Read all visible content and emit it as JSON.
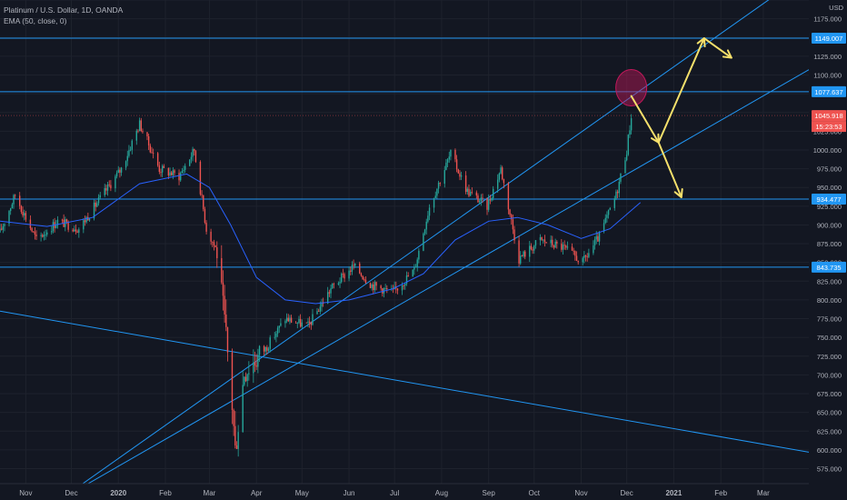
{
  "header": {
    "symbol_line": "Platinum / U.S. Dollar, 1D, OANDA",
    "indicator_line": "EMA (50, close, 0)",
    "currency": "USD"
  },
  "colors": {
    "background": "#131722",
    "grid": "#1e222d",
    "up": "#26a69a",
    "down": "#ef5350",
    "line": "#2196f3",
    "ema": "#2962ff",
    "arrow": "#f5e06b",
    "circle": "#c2185b",
    "axis_text": "#b2b5be"
  },
  "chart_data": {
    "type": "candlestick",
    "y_axis": {
      "min": 555,
      "max": 1200,
      "ticks": [
        575,
        600,
        625,
        650,
        675,
        700,
        725,
        750,
        775,
        800,
        825,
        850,
        875,
        900,
        925,
        950,
        975,
        1000,
        1025,
        1050,
        1075,
        1100,
        1125,
        1150,
        1175,
        1200
      ],
      "tick_labels": [
        "575.000",
        "600.000",
        "625.000",
        "650.000",
        "675.000",
        "700.000",
        "725.000",
        "750.000",
        "775.000",
        "800.000",
        "825.000",
        "850.000",
        "875.000",
        "900.000",
        "925.000",
        "950.000",
        "975.000",
        "1000.000",
        "1025.000",
        "1050.000",
        "1075.000",
        "1100.000",
        "1125.000",
        "1150.000",
        "1175.000",
        "1200.000"
      ]
    },
    "x_axis": {
      "start": "2019-10-15",
      "end": "2021-03-31",
      "labels": [
        {
          "date": "2019-11-01",
          "text": "Nov",
          "bold": false
        },
        {
          "date": "2019-12-01",
          "text": "Dec",
          "bold": false
        },
        {
          "date": "2020-01-01",
          "text": "2020",
          "bold": true
        },
        {
          "date": "2020-02-01",
          "text": "Feb",
          "bold": false
        },
        {
          "date": "2020-03-01",
          "text": "Mar",
          "bold": false
        },
        {
          "date": "2020-04-01",
          "text": "Apr",
          "bold": false
        },
        {
          "date": "2020-05-01",
          "text": "May",
          "bold": false
        },
        {
          "date": "2020-06-01",
          "text": "Jun",
          "bold": false
        },
        {
          "date": "2020-07-01",
          "text": "Jul",
          "bold": false
        },
        {
          "date": "2020-08-01",
          "text": "Aug",
          "bold": false
        },
        {
          "date": "2020-09-01",
          "text": "Sep",
          "bold": false
        },
        {
          "date": "2020-10-01",
          "text": "Oct",
          "bold": false
        },
        {
          "date": "2020-11-01",
          "text": "Nov",
          "bold": false
        },
        {
          "date": "2020-12-01",
          "text": "Dec",
          "bold": false
        },
        {
          "date": "2021-01-01",
          "text": "2021",
          "bold": true
        },
        {
          "date": "2021-02-01",
          "text": "Feb",
          "bold": false
        },
        {
          "date": "2021-03-01",
          "text": "Mar",
          "bold": false
        }
      ]
    },
    "price_path": [
      {
        "date": "2019-10-15",
        "price": 890
      },
      {
        "date": "2019-10-25",
        "price": 940
      },
      {
        "date": "2019-11-08",
        "price": 880
      },
      {
        "date": "2019-11-22",
        "price": 905
      },
      {
        "date": "2019-12-06",
        "price": 895
      },
      {
        "date": "2019-12-20",
        "price": 935
      },
      {
        "date": "2020-01-03",
        "price": 975
      },
      {
        "date": "2020-01-15",
        "price": 1035
      },
      {
        "date": "2020-01-28",
        "price": 975
      },
      {
        "date": "2020-02-10",
        "price": 965
      },
      {
        "date": "2020-02-20",
        "price": 1000
      },
      {
        "date": "2020-02-28",
        "price": 895
      },
      {
        "date": "2020-03-06",
        "price": 865
      },
      {
        "date": "2020-03-12",
        "price": 750
      },
      {
        "date": "2020-03-16",
        "price": 660
      },
      {
        "date": "2020-03-18",
        "price": 600
      },
      {
        "date": "2020-03-24",
        "price": 705
      },
      {
        "date": "2020-04-07",
        "price": 735
      },
      {
        "date": "2020-04-20",
        "price": 775
      },
      {
        "date": "2020-05-05",
        "price": 765
      },
      {
        "date": "2020-05-20",
        "price": 815
      },
      {
        "date": "2020-06-04",
        "price": 845
      },
      {
        "date": "2020-06-16",
        "price": 820
      },
      {
        "date": "2020-06-30",
        "price": 810
      },
      {
        "date": "2020-07-14",
        "price": 840
      },
      {
        "date": "2020-07-24",
        "price": 925
      },
      {
        "date": "2020-08-07",
        "price": 995
      },
      {
        "date": "2020-08-18",
        "price": 945
      },
      {
        "date": "2020-08-31",
        "price": 925
      },
      {
        "date": "2020-09-09",
        "price": 975
      },
      {
        "date": "2020-09-21",
        "price": 855
      },
      {
        "date": "2020-10-05",
        "price": 880
      },
      {
        "date": "2020-10-20",
        "price": 870
      },
      {
        "date": "2020-11-02",
        "price": 850
      },
      {
        "date": "2020-11-13",
        "price": 885
      },
      {
        "date": "2020-11-24",
        "price": 940
      },
      {
        "date": "2020-12-01",
        "price": 1000
      },
      {
        "date": "2020-12-04",
        "price": 1045.918
      }
    ],
    "ema_path": [
      {
        "date": "2019-10-15",
        "price": 905
      },
      {
        "date": "2019-11-15",
        "price": 898
      },
      {
        "date": "2019-12-15",
        "price": 910
      },
      {
        "date": "2020-01-15",
        "price": 955
      },
      {
        "date": "2020-02-15",
        "price": 968
      },
      {
        "date": "2020-03-01",
        "price": 950
      },
      {
        "date": "2020-03-15",
        "price": 900
      },
      {
        "date": "2020-04-01",
        "price": 830
      },
      {
        "date": "2020-04-20",
        "price": 800
      },
      {
        "date": "2020-05-10",
        "price": 795
      },
      {
        "date": "2020-06-01",
        "price": 800
      },
      {
        "date": "2020-06-30",
        "price": 815
      },
      {
        "date": "2020-07-20",
        "price": 835
      },
      {
        "date": "2020-08-10",
        "price": 880
      },
      {
        "date": "2020-09-01",
        "price": 905
      },
      {
        "date": "2020-09-20",
        "price": 910
      },
      {
        "date": "2020-10-10",
        "price": 900
      },
      {
        "date": "2020-11-01",
        "price": 882
      },
      {
        "date": "2020-11-20",
        "price": 895
      },
      {
        "date": "2020-12-10",
        "price": 930
      }
    ],
    "horizontal_levels": [
      {
        "value": 1149.007,
        "label": "1149.007",
        "color": "#2196f3"
      },
      {
        "value": 1077.637,
        "label": "1077.637",
        "color": "#2196f3"
      },
      {
        "value": 934.477,
        "label": "934.477",
        "color": "#2196f3"
      },
      {
        "value": 843.735,
        "label": "843.735",
        "color": "#2196f3"
      }
    ],
    "last_price": {
      "value": 1045.918,
      "label": "1045.918",
      "countdown": "15:23:53",
      "color": "#ef5350"
    },
    "trend_lines": [
      {
        "from": {
          "date": "2019-10-31",
          "price": 500
        },
        "to": {
          "date": "2021-03-31",
          "price": 1238
        }
      },
      {
        "from": {
          "date": "2019-11-30",
          "price": 541
        },
        "to": {
          "date": "2021-03-31",
          "price": 1107
        }
      },
      {
        "from": {
          "date": "2019-10-15",
          "price": 785
        },
        "to": {
          "date": "2021-03-31",
          "price": 597
        }
      }
    ],
    "arrows": [
      {
        "from": {
          "date": "2020-12-04",
          "price": 1072
        },
        "to": {
          "date": "2020-12-22",
          "price": 1010
        }
      },
      {
        "from": {
          "date": "2020-12-22",
          "price": 1010
        },
        "to": {
          "date": "2021-01-21",
          "price": 1149
        }
      },
      {
        "from": {
          "date": "2021-01-21",
          "price": 1149
        },
        "to": {
          "date": "2021-02-08",
          "price": 1123
        }
      },
      {
        "from": {
          "date": "2020-12-22",
          "price": 1010
        },
        "to": {
          "date": "2021-01-06",
          "price": 937
        }
      }
    ],
    "highlight_circle": {
      "date": "2020-12-04",
      "price": 1083
    }
  }
}
